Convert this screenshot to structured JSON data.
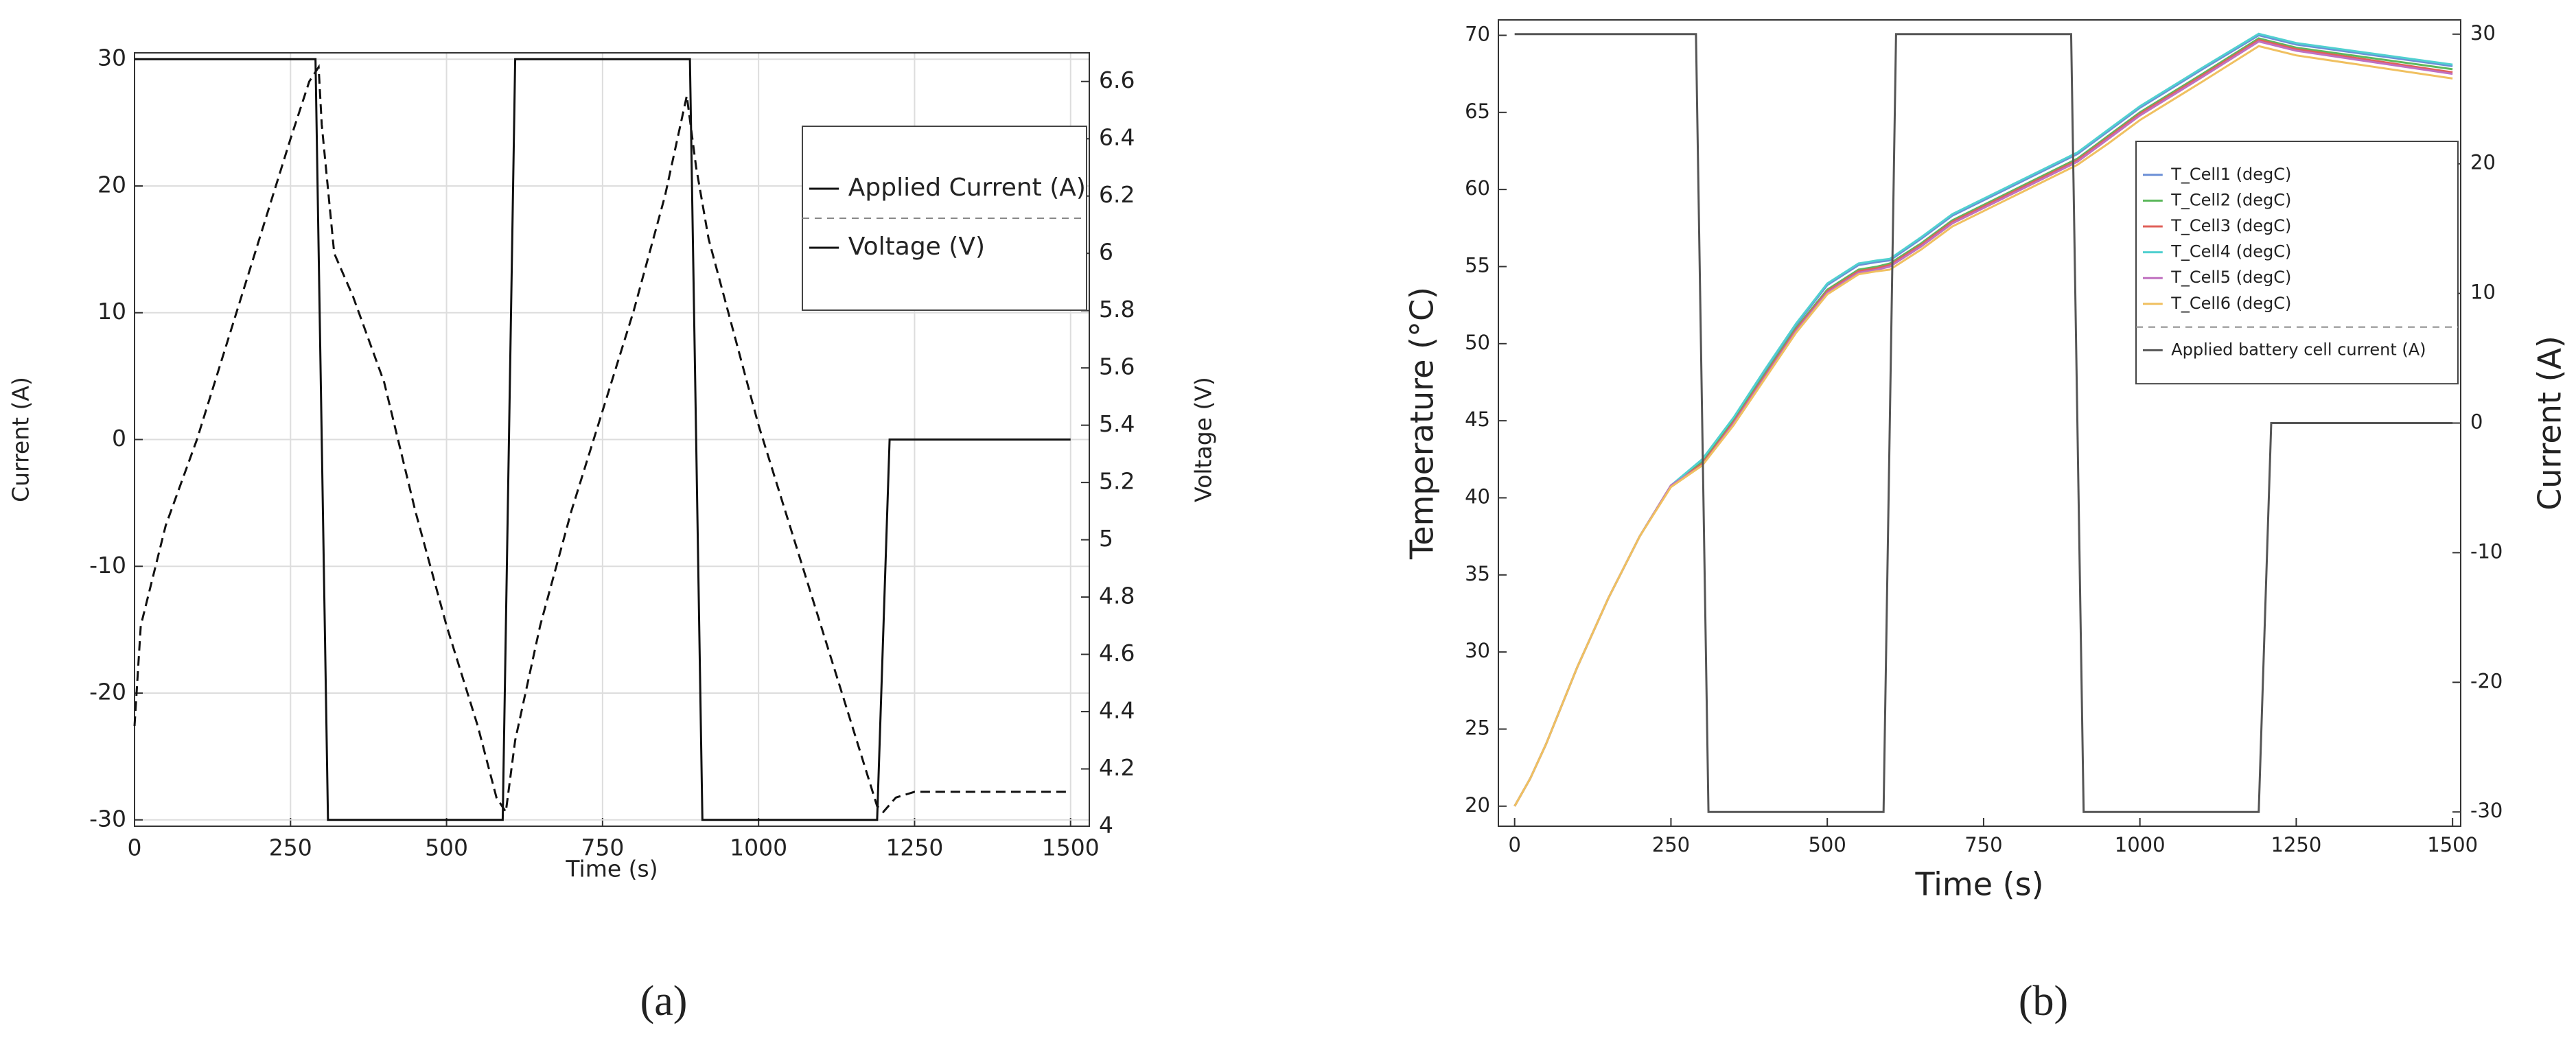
{
  "chart_data": [
    {
      "type": "line",
      "caption": "(a)",
      "xlabel": "Time (s)",
      "ylabel": "Current (A)",
      "y2label": "Voltage (V)",
      "xlim": [
        0,
        1530
      ],
      "xticks": [
        0,
        250,
        500,
        750,
        1000,
        1250,
        1500
      ],
      "ylim": [
        -30.5,
        30.5
      ],
      "yticks": [
        -30,
        -20,
        -10,
        0,
        10,
        20,
        30
      ],
      "y2lim": [
        4,
        6.7
      ],
      "y2ticks": [
        4,
        4.2,
        4.4,
        4.6,
        4.8,
        5,
        5.2,
        5.4,
        5.6,
        5.8,
        6,
        6.2,
        6.4,
        6.6
      ],
      "grid": true,
      "legend": "upper right",
      "series": [
        {
          "name": "Applied Current (A)",
          "color": "#111111",
          "dash": "solid",
          "x": [
            0,
            290,
            310,
            590,
            610,
            890,
            910,
            1190,
            1210,
            1500
          ],
          "values": [
            30,
            30,
            -30,
            -30,
            30,
            30,
            -30,
            -30,
            0,
            0
          ]
        },
        {
          "name": "Voltage (V)",
          "color": "#111111",
          "dash": "dashed",
          "axis": "y2",
          "x": [
            0,
            10,
            50,
            100,
            150,
            200,
            250,
            280,
            295,
            300,
            320,
            350,
            400,
            450,
            500,
            550,
            580,
            595,
            610,
            650,
            700,
            750,
            800,
            850,
            885,
            900,
            920,
            1000,
            1100,
            1150,
            1190,
            1200,
            1220,
            1250,
            1500
          ],
          "values": [
            4.35,
            4.7,
            5.05,
            5.35,
            5.7,
            6.05,
            6.4,
            6.6,
            6.65,
            6.45,
            6.0,
            5.85,
            5.55,
            5.1,
            4.7,
            4.35,
            4.1,
            4.05,
            4.3,
            4.7,
            5.1,
            5.45,
            5.8,
            6.2,
            6.55,
            6.3,
            6.05,
            5.4,
            4.7,
            4.35,
            4.07,
            4.05,
            4.1,
            4.12,
            4.12
          ]
        }
      ]
    },
    {
      "type": "line",
      "caption": "(b)",
      "xlabel": "Time (s)",
      "ylabel": "Temperature (°C)",
      "y2label": "Current (A)",
      "xlim": [
        -26,
        1513
      ],
      "xticks": [
        0,
        250,
        500,
        750,
        1000,
        1250,
        1500
      ],
      "ylim": [
        18.7,
        71
      ],
      "yticks": [
        20,
        25,
        30,
        35,
        40,
        45,
        50,
        55,
        60,
        65,
        70
      ],
      "y2lim": [
        -31.1,
        31.1
      ],
      "y2ticks": [
        -30,
        -20,
        -10,
        0,
        10,
        20,
        30
      ],
      "grid": false,
      "legend": "upper right",
      "series": [
        {
          "name": "T_Cell1 (degC)",
          "color": "#6b8fd6",
          "dash": "solid",
          "x": [
            0,
            25,
            50,
            100,
            150,
            200,
            250,
            300,
            350,
            400,
            450,
            500,
            550,
            580,
            600,
            650,
            700,
            800,
            900,
            950,
            1000,
            1100,
            1190,
            1250,
            1500
          ],
          "values": [
            20,
            21.8,
            24,
            29,
            33.5,
            37.5,
            40.8,
            42.4,
            45.1,
            48.2,
            51.2,
            53.8,
            55.1,
            55.3,
            55.4,
            56.8,
            58.3,
            60.3,
            62.3,
            63.8,
            65.3,
            67.8,
            70,
            69.4,
            68
          ]
        },
        {
          "name": "T_Cell2 (degC)",
          "color": "#5cb85c",
          "dash": "solid",
          "x": [
            0,
            25,
            50,
            100,
            150,
            200,
            250,
            300,
            350,
            400,
            450,
            500,
            550,
            580,
            600,
            650,
            700,
            800,
            900,
            950,
            1000,
            1100,
            1190,
            1250,
            1500
          ],
          "values": [
            20,
            21.8,
            24,
            29,
            33.5,
            37.5,
            40.8,
            42.3,
            45,
            48,
            51,
            53.5,
            54.8,
            55,
            55.2,
            56.5,
            58,
            60,
            62,
            63.5,
            65,
            67.5,
            69.8,
            69.2,
            67.8
          ]
        },
        {
          "name": "T_Cell3 (degC)",
          "color": "#e0605a",
          "dash": "solid",
          "x": [
            0,
            25,
            50,
            100,
            150,
            200,
            250,
            300,
            350,
            400,
            450,
            500,
            550,
            580,
            600,
            650,
            700,
            800,
            900,
            950,
            1000,
            1100,
            1190,
            1250,
            1500
          ],
          "values": [
            20,
            21.8,
            24,
            29,
            33.5,
            37.5,
            40.8,
            42.2,
            44.9,
            47.9,
            50.9,
            53.4,
            54.7,
            54.9,
            55.1,
            56.4,
            57.9,
            59.9,
            61.9,
            63.4,
            64.9,
            67.4,
            69.7,
            69.1,
            67.6
          ]
        },
        {
          "name": "T_Cell4 (degC)",
          "color": "#50d0d0",
          "dash": "solid",
          "x": [
            0,
            25,
            50,
            100,
            150,
            200,
            250,
            300,
            350,
            400,
            450,
            500,
            550,
            580,
            600,
            650,
            700,
            800,
            900,
            950,
            1000,
            1100,
            1190,
            1250,
            1500
          ],
          "values": [
            20,
            21.8,
            24,
            29,
            33.5,
            37.5,
            40.8,
            42.5,
            45.2,
            48.3,
            51.3,
            53.9,
            55.2,
            55.4,
            55.5,
            56.9,
            58.4,
            60.4,
            62.4,
            63.9,
            65.4,
            67.9,
            70.1,
            69.5,
            68.1
          ]
        },
        {
          "name": "T_Cell5 (degC)",
          "color": "#c070c0",
          "dash": "solid",
          "x": [
            0,
            25,
            50,
            100,
            150,
            200,
            250,
            300,
            350,
            400,
            450,
            500,
            550,
            580,
            600,
            650,
            700,
            800,
            900,
            950,
            1000,
            1100,
            1190,
            1250,
            1500
          ],
          "values": [
            20,
            21.8,
            24,
            29,
            33.5,
            37.5,
            40.8,
            42.1,
            44.8,
            47.8,
            50.8,
            53.3,
            54.6,
            54.8,
            55,
            56.3,
            57.8,
            59.8,
            61.8,
            63.3,
            64.8,
            67.3,
            69.6,
            69,
            67.5
          ]
        },
        {
          "name": "T_Cell6 (degC)",
          "color": "#f0c060",
          "dash": "solid",
          "x": [
            0,
            25,
            50,
            100,
            150,
            200,
            250,
            300,
            350,
            400,
            450,
            500,
            550,
            580,
            600,
            650,
            700,
            800,
            900,
            950,
            1000,
            1100,
            1190,
            1250,
            1500
          ],
          "values": [
            20,
            21.8,
            24,
            29,
            33.5,
            37.5,
            40.7,
            42.1,
            44.7,
            47.7,
            50.7,
            53.2,
            54.5,
            54.7,
            54.8,
            56.1,
            57.6,
            59.6,
            61.6,
            63,
            64.5,
            67,
            69.3,
            68.7,
            67.2
          ]
        },
        {
          "name": "Applied battery cell current (A)",
          "color": "#555555",
          "dash": "solid",
          "axis": "y2",
          "x": [
            0,
            290,
            310,
            590,
            610,
            890,
            910,
            1190,
            1210,
            1500
          ],
          "values": [
            30,
            30,
            -30,
            -30,
            30,
            30,
            -30,
            -30,
            0,
            0
          ]
        }
      ]
    }
  ]
}
